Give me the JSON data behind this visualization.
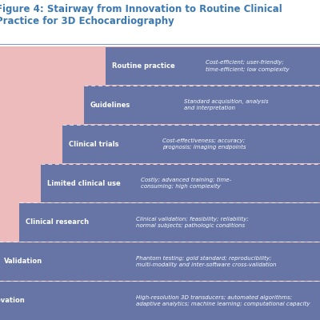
{
  "title": "Figure 4: Stairway from Innovation to Routine Clinical\nPractice for 3D Echocardiography",
  "title_color": "#3B78B0",
  "title_fontsize": 8.5,
  "background_color": "#FFFFFF",
  "stair_bg_color": "#EDBBBB",
  "step_color": "#6675A5",
  "separator_color": "#AAAACC",
  "fig_width": 4.0,
  "fig_height": 4.0,
  "steps": [
    {
      "label": "Innovation",
      "description": "High-resolution 3D transducers; automated algorithms;\nadaptive analytics; machine learning; computational capacity",
      "level": 0
    },
    {
      "label": "Validation",
      "description": "Phantom testing; gold standard; reproducibility;\nmulti-modality and inter-software cross-validation",
      "level": 1
    },
    {
      "label": "Clinical research",
      "description": "Clinical validation; feasibility; reliability;\nnormal subjects; pathologic conditions",
      "level": 2
    },
    {
      "label": "Limited clinical use",
      "description": "Costly; advanced training; time-\nconsuming; high complexity",
      "level": 3
    },
    {
      "label": "Clinical trials",
      "description": "Cost-effectiveness; accuracy;\nprognosis; imaging endpoints",
      "level": 4
    },
    {
      "label": "Guidelines",
      "description": "Standard acquisition, analysis\nand interpretation",
      "level": 5
    },
    {
      "label": "Routine practice",
      "description": "Cost-efficient; user-friendly;\ntime-efficient; low complexity",
      "level": 6
    }
  ]
}
